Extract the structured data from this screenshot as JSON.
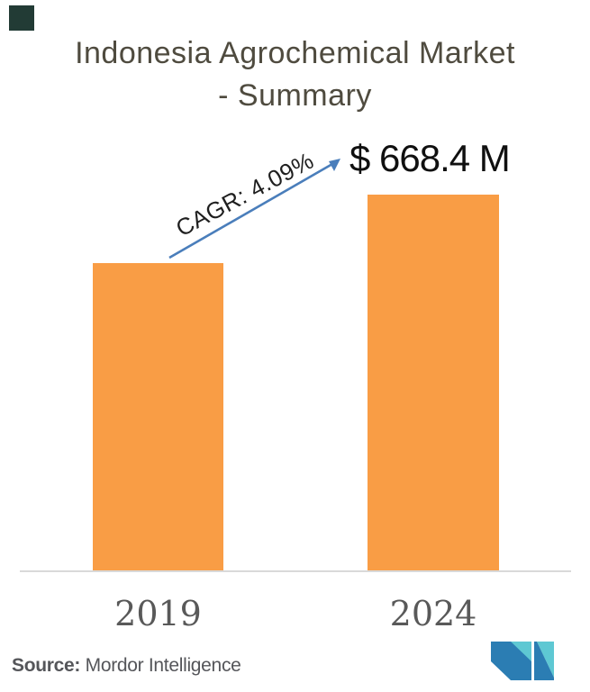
{
  "title": {
    "line1": "Indonesia Agrochemical Market",
    "line2": "- Summary"
  },
  "annotations": {
    "cagr": "CAGR: 4.09%",
    "value_2024": "$ 668.4 M"
  },
  "x_axis": {
    "labels": [
      "2019",
      "2024"
    ]
  },
  "source": {
    "prefix": "Source:",
    "name": " Mordor Intelligence"
  },
  "colors": {
    "bar": "#F99D45",
    "arrow": "#4A7EBB",
    "baseline": "#D9D9D9",
    "title_text": "#4F4B3F",
    "year_text": "#595959",
    "source_text": "#55565A",
    "value_text": "#101010",
    "corner_square": "#223B35",
    "logo_dark_blue": "#2B7DB3",
    "logo_teal": "#5EC8D3"
  },
  "chart_data": {
    "type": "bar",
    "title": "Indonesia Agrochemical Market - Summary",
    "categories": [
      "2019",
      "2024"
    ],
    "values": [
      547.3,
      668.4
    ],
    "value_labels": [
      "",
      "$ 668.4 M"
    ],
    "unit": "USD million ($ M)",
    "xlabel": "",
    "ylabel": "",
    "ylim": [
      0,
      700
    ],
    "grid": false,
    "legend": false,
    "bar_color": "#F99D45",
    "annotations": [
      "CAGR: 4.09%"
    ],
    "notes": "2019 bar is unlabeled; value estimated from bar height and CAGR 4.09% over 2019-2024",
    "source": "Mordor Intelligence"
  }
}
